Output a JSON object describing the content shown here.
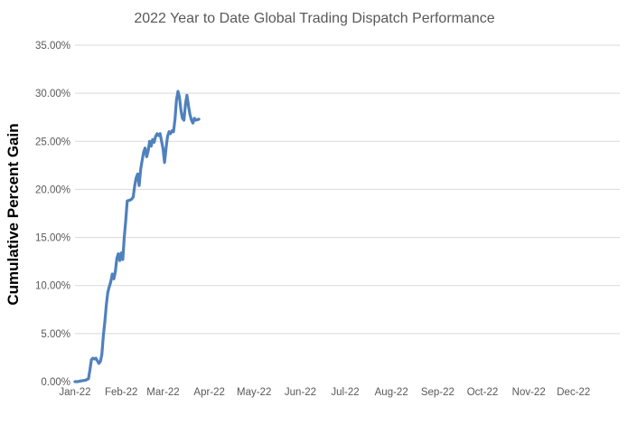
{
  "colors": {
    "background": "#FFFFFF",
    "title_text": "#595959",
    "axis_title_text": "#000000",
    "tick_text": "#595959",
    "gridline": "#D9D9D9",
    "line": "#4F81BD"
  },
  "chart_data": {
    "type": "line",
    "title": "2022 Year to Date Global Trading Dispatch Performance",
    "xlabel": "",
    "ylabel": "Cumulative Percent Gain",
    "legend": "none",
    "grid": "horizontal",
    "ylim": [
      0,
      35
    ],
    "y_tick_values": [
      0,
      5,
      10,
      15,
      20,
      25,
      30,
      35
    ],
    "y_tick_labels": [
      "0.00%",
      "5.00%",
      "10.00%",
      "15.00%",
      "20.00%",
      "25.00%",
      "30.00%",
      "35.00%"
    ],
    "x_range_days": [
      0,
      365
    ],
    "x_tick_day_offsets": [
      0,
      31,
      59,
      90,
      120,
      151,
      181,
      212,
      243,
      273,
      304,
      334
    ],
    "x_tick_labels": [
      "Jan-22",
      "Feb-22",
      "Mar-22",
      "Apr-22",
      "May-22",
      "Jun-22",
      "Jul-22",
      "Aug-22",
      "Sep-22",
      "Oct-22",
      "Nov-22",
      "Dec-22"
    ],
    "series": [
      {
        "name": "Cumulative Percent Gain",
        "dates": [
          "2022-01-01",
          "2022-01-03",
          "2022-01-04",
          "2022-01-06",
          "2022-01-08",
          "2022-01-10",
          "2022-01-11",
          "2022-01-12",
          "2022-01-13",
          "2022-01-14",
          "2022-01-15",
          "2022-01-17",
          "2022-01-18",
          "2022-01-19",
          "2022-01-20",
          "2022-01-21",
          "2022-01-22",
          "2022-01-23",
          "2022-01-24",
          "2022-01-25",
          "2022-01-26",
          "2022-01-27",
          "2022-01-28",
          "2022-01-29",
          "2022-01-30",
          "2022-01-31",
          "2022-02-01",
          "2022-02-02",
          "2022-02-03",
          "2022-02-04",
          "2022-02-05",
          "2022-02-06",
          "2022-02-07",
          "2022-02-08",
          "2022-02-09",
          "2022-02-10",
          "2022-02-11",
          "2022-02-12",
          "2022-02-13",
          "2022-02-14",
          "2022-02-15",
          "2022-02-16",
          "2022-02-17",
          "2022-02-18",
          "2022-02-19",
          "2022-02-20",
          "2022-02-21",
          "2022-02-22",
          "2022-02-23",
          "2022-02-24",
          "2022-02-25",
          "2022-02-26",
          "2022-02-27",
          "2022-03-01",
          "2022-03-02",
          "2022-03-03",
          "2022-03-04",
          "2022-03-05",
          "2022-03-06",
          "2022-03-07",
          "2022-03-08",
          "2022-03-09",
          "2022-03-10",
          "2022-03-11",
          "2022-03-12",
          "2022-03-13",
          "2022-03-14",
          "2022-03-15",
          "2022-03-16",
          "2022-03-17",
          "2022-03-18",
          "2022-03-19",
          "2022-03-20",
          "2022-03-21",
          "2022-03-22",
          "2022-03-23",
          "2022-03-25"
        ],
        "values": [
          0.0,
          0.0,
          0.05,
          0.1,
          0.15,
          0.3,
          1.2,
          2.3,
          2.45,
          2.35,
          2.45,
          1.9,
          2.1,
          2.8,
          4.8,
          6.2,
          8.0,
          9.3,
          9.9,
          10.4,
          11.2,
          10.7,
          11.4,
          12.8,
          13.3,
          12.6,
          13.4,
          12.7,
          15.0,
          16.8,
          18.8,
          18.85,
          18.9,
          19.0,
          19.2,
          20.4,
          21.2,
          21.6,
          20.4,
          22.1,
          23.0,
          23.9,
          24.3,
          23.4,
          24.0,
          25.0,
          24.5,
          25.2,
          24.9,
          25.5,
          25.8,
          25.6,
          25.8,
          24.2,
          22.8,
          24.3,
          25.5,
          26.0,
          25.8,
          26.1,
          26.0,
          27.3,
          29.3,
          30.2,
          29.6,
          28.2,
          27.4,
          27.2,
          28.9,
          29.8,
          28.7,
          27.8,
          27.2,
          26.9,
          27.4,
          27.2,
          27.3
        ]
      }
    ]
  }
}
